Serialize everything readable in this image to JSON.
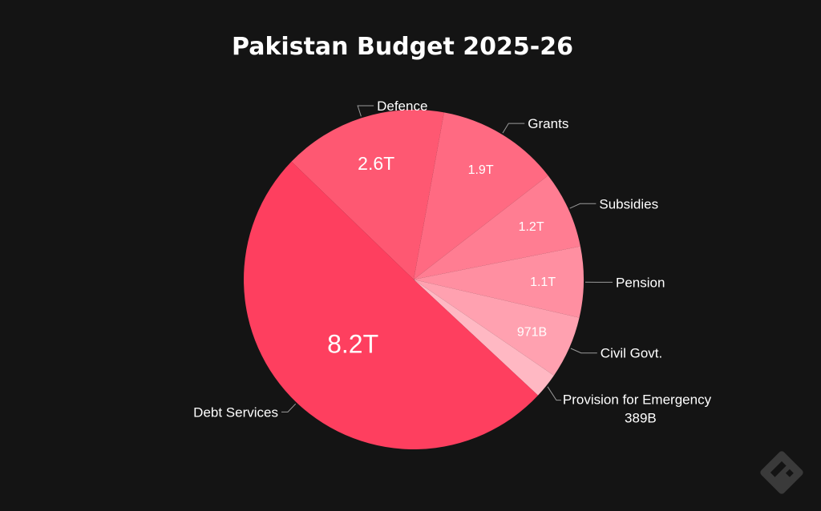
{
  "chart_data": {
    "type": "pie",
    "title": "Pakistan Budget 2025-26",
    "start_angle_deg": -46,
    "slices": [
      {
        "name": "Defence",
        "value": 2.55,
        "display": "2.6T",
        "color": "#fe5872",
        "label_side": "right"
      },
      {
        "name": "Grants",
        "value": 1.9,
        "display": "1.9T",
        "color": "#ff6a82",
        "label_side": "right"
      },
      {
        "name": "Subsidies",
        "value": 1.2,
        "display": "1.2T",
        "color": "#ff7d92",
        "label_side": "right"
      },
      {
        "name": "Pension",
        "value": 1.1,
        "display": "1.1T",
        "color": "#ff8fa1",
        "label_side": "right"
      },
      {
        "name": "Civil Govt.",
        "value": 0.971,
        "display": "971B",
        "color": "#ffa1b0",
        "label_side": "right"
      },
      {
        "name": "Provision for Emergency",
        "value": 0.389,
        "display": "389B",
        "color": "#ffb8c3",
        "label_side": "bottom"
      },
      {
        "name": "Debt Services",
        "value": 8.2,
        "display": "8.2T",
        "color": "#fe3f5f",
        "label_side": "left"
      }
    ]
  },
  "watermark": {
    "icon": "brand-logo-icon"
  }
}
